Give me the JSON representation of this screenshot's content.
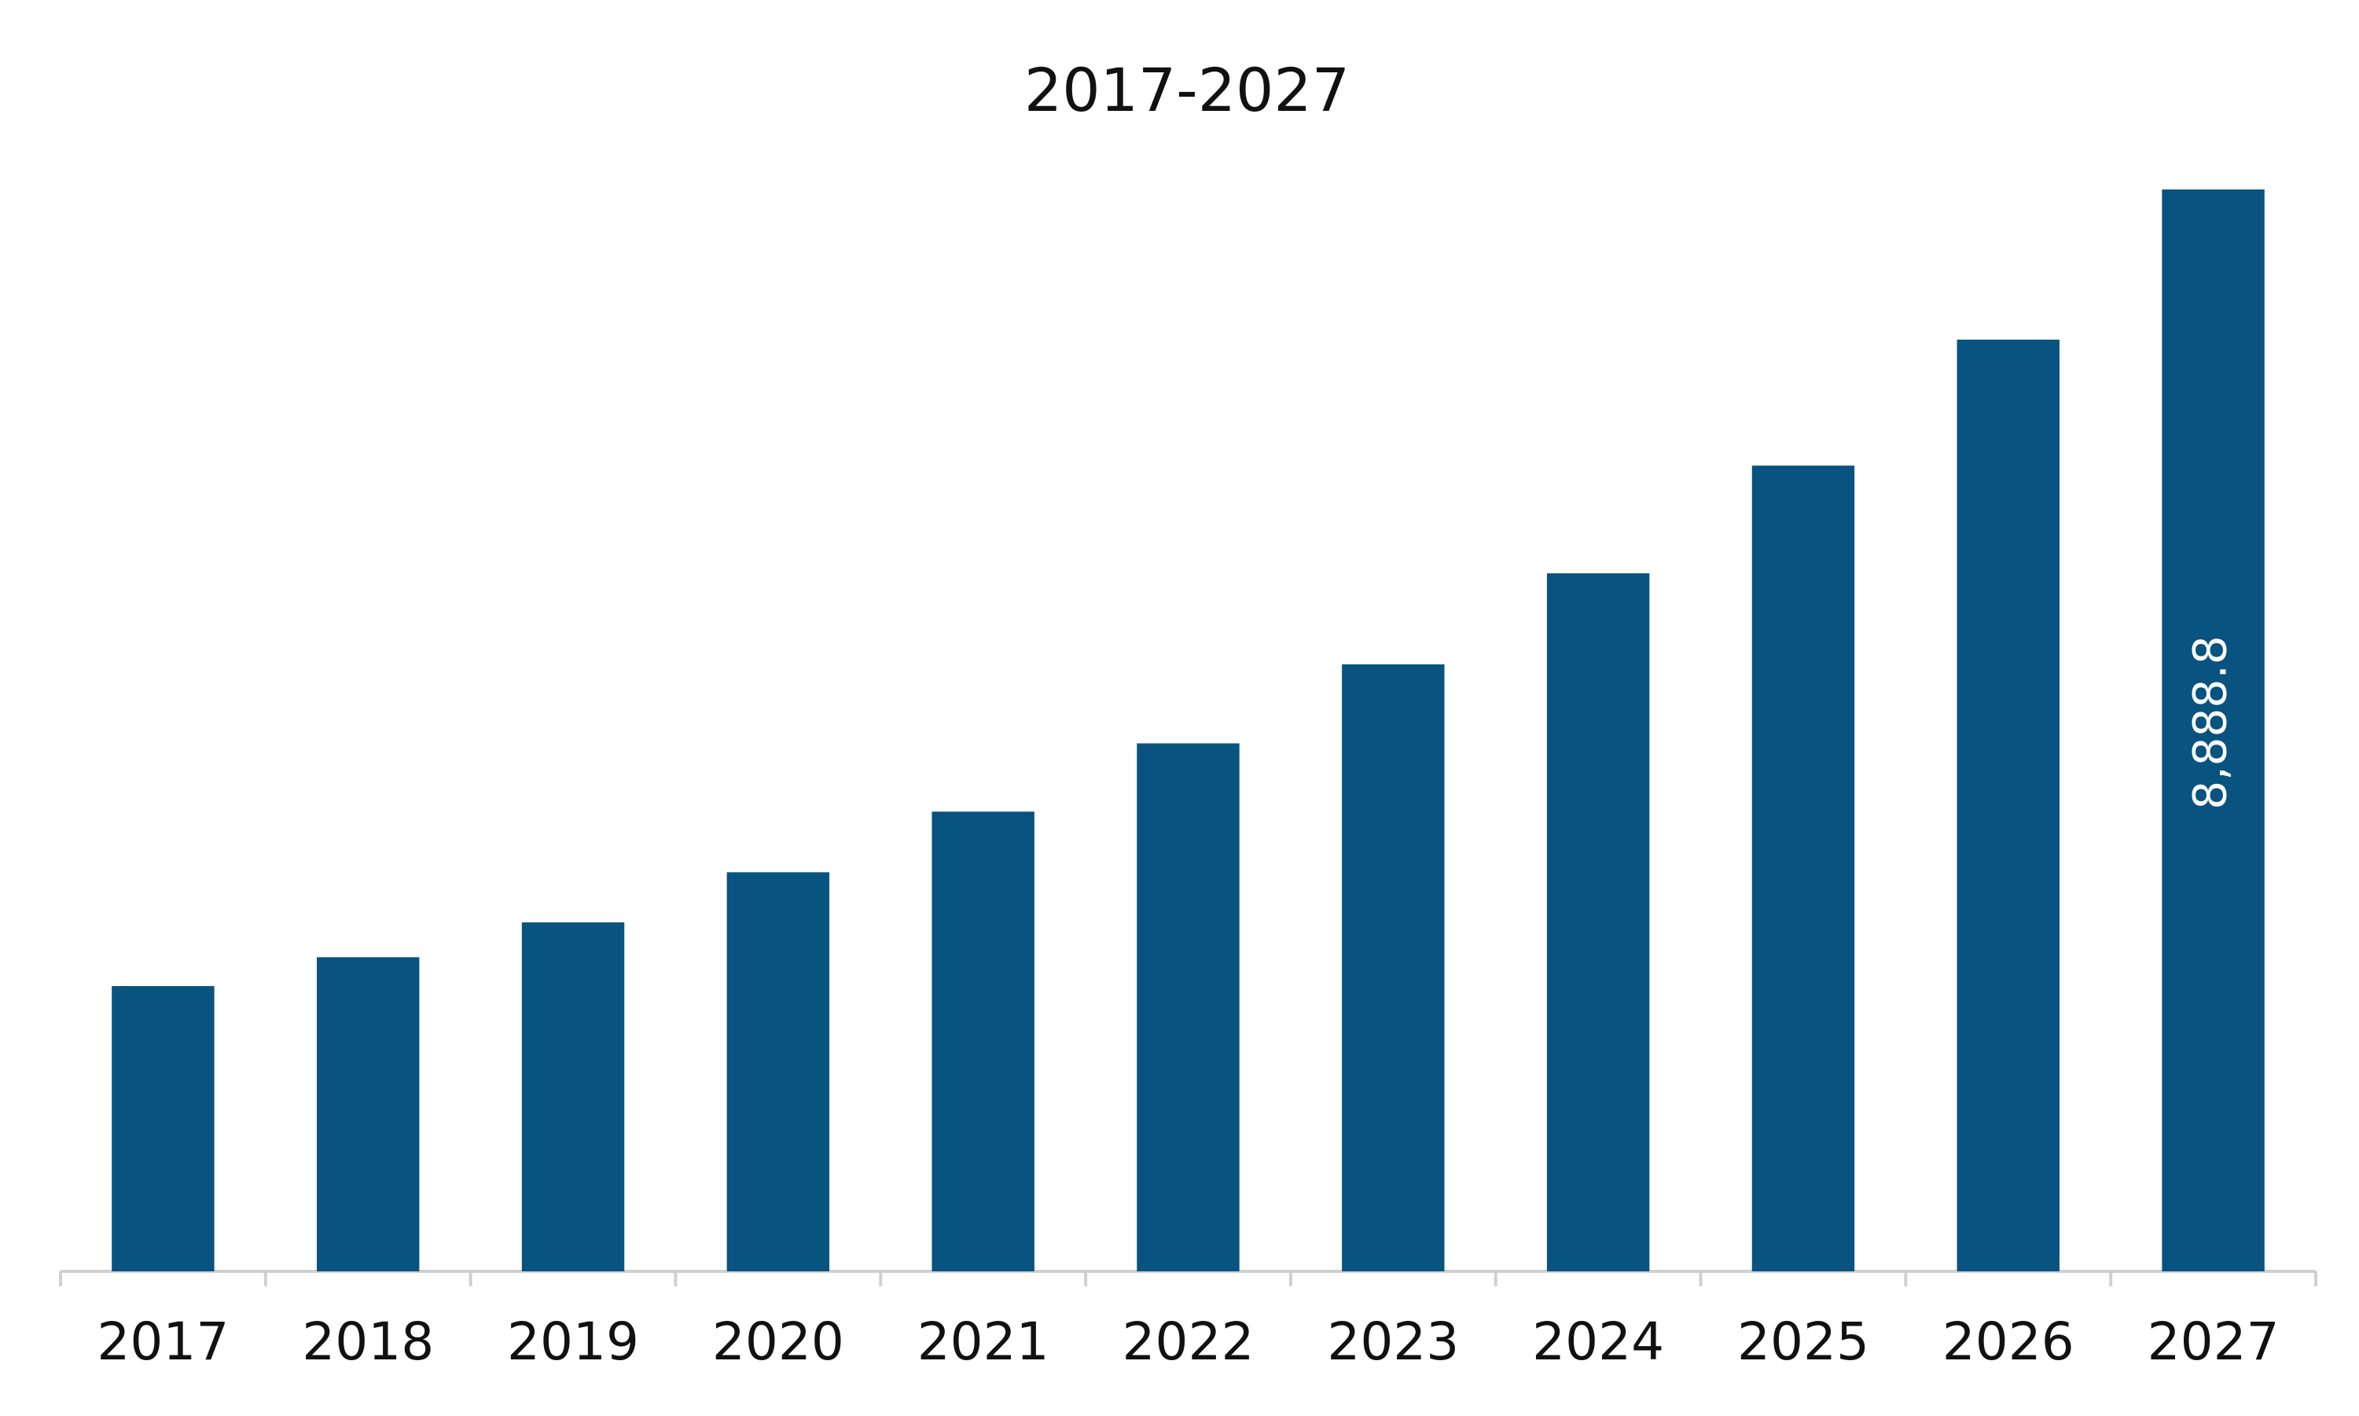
{
  "chart_data": {
    "type": "bar",
    "title": "2017-2027",
    "categories": [
      "2017",
      "2018",
      "2019",
      "2020",
      "2021",
      "2022",
      "2023",
      "2024",
      "2025",
      "2026",
      "2027"
    ],
    "values": [
      2344,
      2581,
      2867,
      3279,
      3777,
      4338,
      4987,
      5735,
      6620,
      7655,
      8888.8
    ],
    "value_labels": [
      null,
      null,
      null,
      null,
      null,
      null,
      null,
      null,
      null,
      null,
      "8,888.8"
    ],
    "color": "#08537f"
  }
}
